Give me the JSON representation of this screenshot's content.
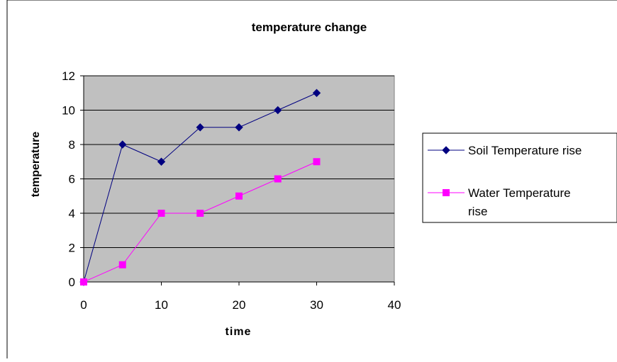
{
  "chart_data": {
    "type": "line",
    "title": "temperature change",
    "xlabel": "time",
    "ylabel": "temperature",
    "x": [
      0,
      5,
      10,
      15,
      20,
      25,
      30
    ],
    "xlim": [
      0,
      40
    ],
    "ylim": [
      0,
      12
    ],
    "x_ticks": [
      0,
      10,
      20,
      30,
      40
    ],
    "y_ticks": [
      0,
      2,
      4,
      6,
      8,
      10,
      12
    ],
    "grid": "horizontal",
    "plot_background": "#c0c0c0",
    "legend_position": "right",
    "series": [
      {
        "name": "Soil Temperature rise",
        "name_lines": [
          "Soil Temperature rise"
        ],
        "values": [
          0,
          8,
          7,
          9,
          9,
          10,
          11
        ],
        "color": "#000080",
        "marker": "diamond"
      },
      {
        "name": "Water Temperature rise",
        "name_lines": [
          "Water Temperature",
          "rise"
        ],
        "values": [
          0,
          1,
          4,
          4,
          5,
          6,
          7
        ],
        "color": "#ff00ff",
        "marker": "square"
      }
    ]
  }
}
